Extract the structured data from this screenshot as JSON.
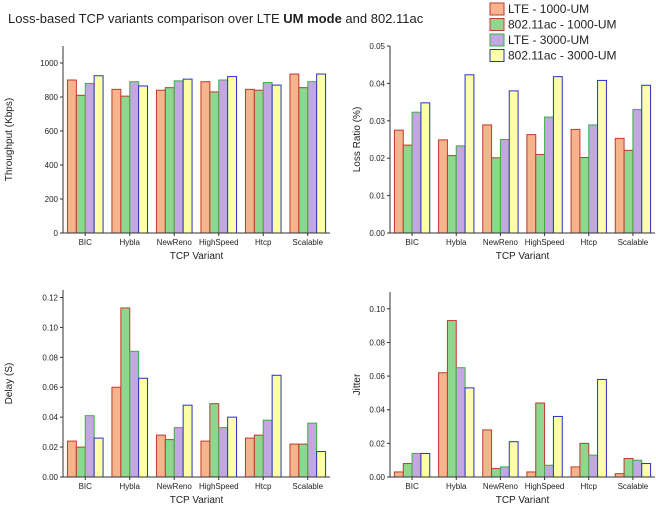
{
  "title": [
    "Loss-based TCP variants comparison over LTE ",
    "UM mode",
    " and 802.11ac"
  ],
  "chart_data": [
    {
      "type": "bar",
      "x_label": "TCP Variant",
      "y_label": "Throughput (Kbps)",
      "categories": [
        "BIC",
        "Hybla",
        "NewReno",
        "HighSpeed",
        "Htcp",
        "Scalable"
      ],
      "ylim": [
        0,
        1100
      ],
      "yticks": [
        0,
        200,
        400,
        600,
        800,
        1000
      ],
      "series": [
        {
          "name": "LTE - 1000-UM",
          "color": "#f6b48c",
          "edge": "#c0392b",
          "values": [
            900,
            845,
            840,
            890,
            845,
            935
          ]
        },
        {
          "name": "802.11ac - 1000-UM",
          "color": "#8fd68f",
          "edge": "#c0392b",
          "values": [
            810,
            805,
            855,
            830,
            840,
            855
          ]
        },
        {
          "name": "LTE - 3000-UM",
          "color": "#c3a7e0",
          "edge": "#3cb043",
          "values": [
            880,
            890,
            895,
            900,
            885,
            890
          ]
        },
        {
          "name": "802.11ac - 3000-UM",
          "color": "#ffffa8",
          "edge": "#2432c8",
          "values": [
            925,
            865,
            905,
            920,
            870,
            935
          ]
        }
      ]
    },
    {
      "type": "bar",
      "x_label": "TCP Variant",
      "y_label": "Loss Ratio (%)",
      "categories": [
        "BIC",
        "Hybla",
        "NewReno",
        "HighSpeed",
        "Htcp",
        "Scalable"
      ],
      "ylim": [
        0,
        0.05
      ],
      "yticks": [
        {
          "value": 0,
          "label": "0.00"
        },
        0.01,
        0.02,
        0.03,
        0.04,
        0.05
      ],
      "series": [
        {
          "color": "#f6b48c",
          "edge": "#c0392b",
          "values": [
            0.0275,
            0.0249,
            0.0289,
            0.0263,
            0.0277,
            0.0253
          ]
        },
        {
          "color": "#8fd68f",
          "edge": "#c0392b",
          "values": [
            0.0235,
            0.0207,
            0.0201,
            0.021,
            0.0202,
            0.0221
          ]
        },
        {
          "color": "#c3a7e0",
          "edge": "#3cb043",
          "values": [
            0.0323,
            0.0233,
            0.025,
            0.031,
            0.0289,
            0.033
          ]
        },
        {
          "color": "#ffffa8",
          "edge": "#2432c8",
          "values": [
            0.0348,
            0.0423,
            0.038,
            0.0418,
            0.0408,
            0.0395
          ]
        }
      ]
    },
    {
      "type": "bar",
      "x_label": "TCP Variant",
      "y_label": "Delay (S)",
      "categories": [
        "BIC",
        "Hybla",
        "NewReno",
        "HighSpeed",
        "Htcp",
        "Scalable"
      ],
      "ylim": [
        0,
        0.125
      ],
      "yticks": [
        {
          "value": 0,
          "label": "0.00"
        },
        0.02,
        0.04,
        0.06,
        0.08,
        {
          "value": 0.1,
          "label": "0.10"
        },
        0.12
      ],
      "series": [
        {
          "color": "#f6b48c",
          "edge": "#c0392b",
          "values": [
            0.024,
            0.06,
            0.028,
            0.024,
            0.026,
            0.022
          ]
        },
        {
          "color": "#8fd68f",
          "edge": "#c0392b",
          "values": [
            0.02,
            0.113,
            0.025,
            0.049,
            0.028,
            0.022
          ]
        },
        {
          "color": "#c3a7e0",
          "edge": "#3cb043",
          "values": [
            0.041,
            0.084,
            0.033,
            0.033,
            0.038,
            0.036
          ]
        },
        {
          "color": "#ffffa8",
          "edge": "#2432c8",
          "values": [
            0.026,
            0.066,
            0.048,
            0.04,
            0.068,
            0.017
          ]
        }
      ]
    },
    {
      "type": "bar",
      "x_label": "TCP Variant",
      "y_label": "Jitter",
      "categories": [
        "BIC",
        "Hybla",
        "NewReno",
        "HighSpeed",
        "Htcp",
        "Scalable"
      ],
      "ylim": [
        0,
        0.11
      ],
      "yticks": [
        {
          "value": 0,
          "label": "0.00"
        },
        0.02,
        0.04,
        0.06,
        0.08,
        {
          "value": 0.1,
          "label": "0.10"
        }
      ],
      "series": [
        {
          "color": "#f6b48c",
          "edge": "#c0392b",
          "values": [
            0.003,
            0.062,
            0.028,
            0.003,
            0.006,
            0.002
          ]
        },
        {
          "color": "#8fd68f",
          "edge": "#c0392b",
          "values": [
            0.008,
            0.093,
            0.005,
            0.044,
            0.02,
            0.011
          ]
        },
        {
          "color": "#c3a7e0",
          "edge": "#3cb043",
          "values": [
            0.014,
            0.065,
            0.006,
            0.007,
            0.013,
            0.01
          ]
        },
        {
          "color": "#ffffa8",
          "edge": "#2432c8",
          "values": [
            0.014,
            0.053,
            0.021,
            0.036,
            0.058,
            0.008
          ]
        }
      ]
    }
  ]
}
